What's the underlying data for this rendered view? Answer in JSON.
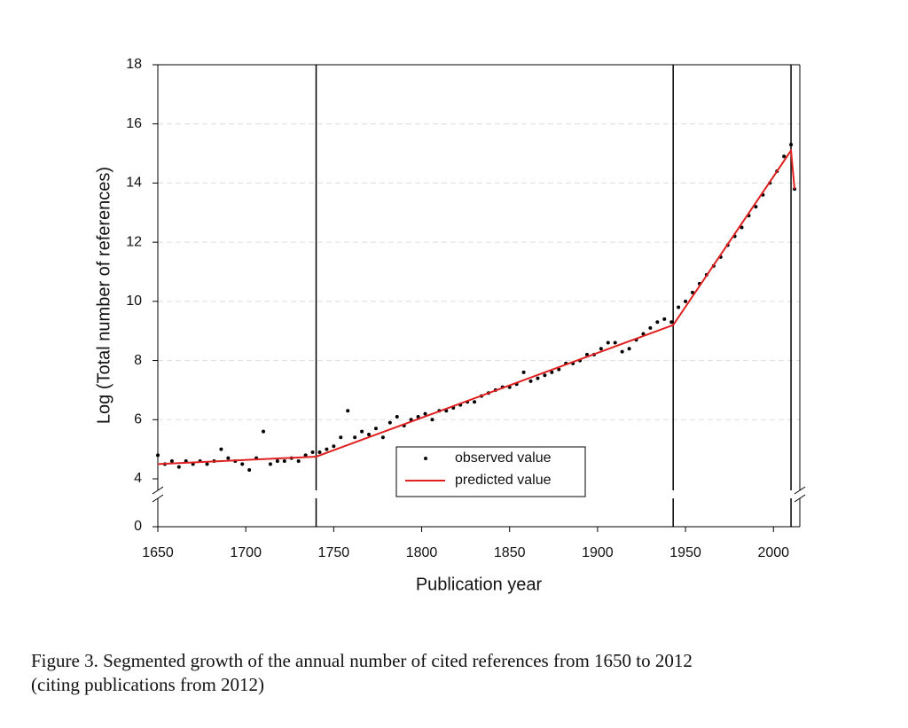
{
  "chart_data": {
    "type": "scatter_line",
    "xlabel": "Publication year",
    "ylabel": "Log (Total number of references)",
    "xlim": [
      1650,
      2015
    ],
    "xticks": [
      1650,
      1700,
      1750,
      1800,
      1850,
      1900,
      1950,
      2000
    ],
    "ylim": [
      0,
      18
    ],
    "yticks": [
      0,
      4,
      6,
      8,
      10,
      12,
      14,
      16,
      18
    ],
    "axis_break": [
      0,
      4
    ],
    "grid": true,
    "breakpoints": [
      1740,
      1943,
      2010
    ],
    "series": [
      {
        "name": "observed value",
        "color": "#000000",
        "marker": "dot",
        "x": [
          1650,
          1654,
          1658,
          1662,
          1666,
          1670,
          1674,
          1678,
          1682,
          1686,
          1690,
          1694,
          1698,
          1702,
          1706,
          1710,
          1714,
          1718,
          1722,
          1726,
          1730,
          1734,
          1738,
          1742,
          1746,
          1750,
          1754,
          1758,
          1762,
          1766,
          1770,
          1774,
          1778,
          1782,
          1786,
          1790,
          1794,
          1798,
          1802,
          1806,
          1810,
          1814,
          1818,
          1822,
          1826,
          1830,
          1834,
          1838,
          1842,
          1846,
          1850,
          1854,
          1858,
          1862,
          1866,
          1870,
          1874,
          1878,
          1882,
          1886,
          1890,
          1894,
          1898,
          1902,
          1906,
          1910,
          1914,
          1918,
          1922,
          1926,
          1930,
          1934,
          1938,
          1942,
          1946,
          1950,
          1954,
          1958,
          1962,
          1966,
          1970,
          1974,
          1978,
          1982,
          1986,
          1990,
          1994,
          1998,
          2002,
          2006,
          2010,
          2012
        ],
        "values": [
          4.8,
          4.5,
          4.6,
          4.4,
          4.6,
          4.5,
          4.6,
          4.5,
          4.6,
          5.0,
          4.7,
          4.6,
          4.5,
          4.3,
          4.7,
          5.6,
          4.5,
          4.6,
          4.6,
          4.7,
          4.6,
          4.8,
          4.9,
          4.9,
          5.0,
          5.1,
          5.4,
          6.3,
          5.4,
          5.6,
          5.5,
          5.7,
          5.4,
          5.9,
          6.1,
          5.8,
          6.0,
          6.1,
          6.2,
          6.0,
          6.3,
          6.3,
          6.4,
          6.5,
          6.6,
          6.6,
          6.8,
          6.9,
          7.0,
          7.1,
          7.1,
          7.2,
          7.6,
          7.3,
          7.4,
          7.5,
          7.6,
          7.7,
          7.9,
          7.9,
          8.0,
          8.2,
          8.2,
          8.4,
          8.6,
          8.6,
          8.3,
          8.4,
          8.7,
          8.9,
          9.1,
          9.3,
          9.4,
          9.3,
          9.8,
          10.0,
          10.3,
          10.6,
          10.9,
          11.2,
          11.5,
          11.9,
          12.2,
          12.5,
          12.9,
          13.2,
          13.6,
          14.0,
          14.4,
          14.9,
          15.3,
          13.8
        ]
      },
      {
        "name": "predicted value",
        "color": "#e02020",
        "marker": "line",
        "x": [
          1650,
          1740,
          1943,
          2010,
          2012
        ],
        "values": [
          4.5,
          4.75,
          9.2,
          15.1,
          13.8
        ]
      }
    ]
  },
  "caption": [
    "Figure 3. Segmented growth of the annual number of cited references from 1650 to 2012",
    "(citing publications from 2012)"
  ]
}
